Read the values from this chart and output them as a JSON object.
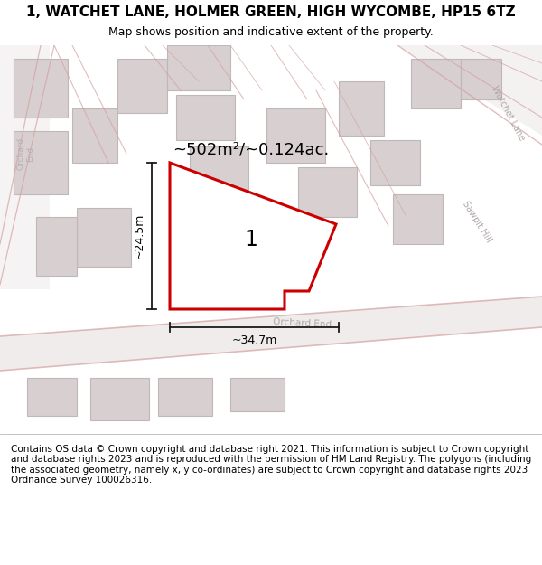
{
  "title": "1, WATCHET LANE, HOLMER GREEN, HIGH WYCOMBE, HP15 6TZ",
  "subtitle": "Map shows position and indicative extent of the property.",
  "footer": "Contains OS data © Crown copyright and database right 2021. This information is subject to Crown copyright and database rights 2023 and is reproduced with the permission of HM Land Registry. The polygons (including the associated geometry, namely x, y co-ordinates) are subject to Crown copyright and database rights 2023 Ordnance Survey 100026316.",
  "area_label": "~502m²/~0.124ac.",
  "width_label": "~34.7m",
  "height_label": "~24.5m",
  "plot_number": "1",
  "map_bg": "#f8f4f4",
  "building_color": "#d8d0d0",
  "building_edge": "#c0b8b8",
  "road_line_color": "#d4a0a0",
  "red_polygon_color": "#cc0000",
  "dim_line_color": "#1a1a1a",
  "road_label_color": "#b0a8a8",
  "title_fontsize": 11,
  "subtitle_fontsize": 9,
  "footer_fontsize": 7.5
}
